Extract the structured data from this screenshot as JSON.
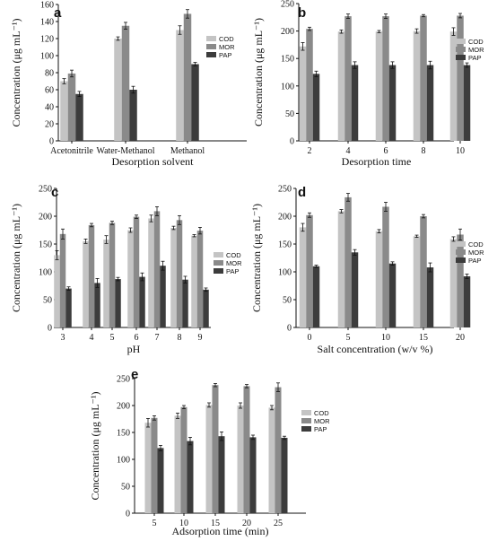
{
  "colors": {
    "COD": "#c4c4c4",
    "MOR": "#8a8a8a",
    "PAP": "#3c3c3c",
    "axis": "#111111"
  },
  "chart_data": [
    {
      "panel": "a",
      "type": "bar",
      "xlabel": "Desorption solvent",
      "ylabel": "Concentration (μg mL⁻¹)",
      "ylim": [
        0,
        160
      ],
      "yticks": [
        0,
        20,
        40,
        60,
        80,
        100,
        120,
        140,
        160
      ],
      "categories": [
        "Acetonitrile",
        "Water-Methanol",
        "Methanol"
      ],
      "legend_position": "top-right",
      "series": [
        {
          "name": "COD",
          "values": [
            70,
            120,
            130
          ],
          "errors": [
            3,
            2,
            5
          ]
        },
        {
          "name": "MOR",
          "values": [
            79,
            135,
            149
          ],
          "errors": [
            4,
            4,
            5
          ]
        },
        {
          "name": "PAP",
          "values": [
            55,
            60,
            90
          ],
          "errors": [
            3,
            4,
            2
          ]
        }
      ]
    },
    {
      "panel": "b",
      "type": "bar",
      "xlabel": "Desorption time",
      "ylabel": "Concentration (μg mL⁻¹)",
      "ylim": [
        0,
        250
      ],
      "yticks": [
        0,
        50,
        100,
        150,
        200,
        250
      ],
      "categories": [
        "2",
        "4",
        "6",
        "8",
        "10"
      ],
      "legend_position": "right",
      "series": [
        {
          "name": "COD",
          "values": [
            172,
            199,
            199,
            200,
            199
          ],
          "errors": [
            7,
            3,
            2,
            4,
            7
          ]
        },
        {
          "name": "MOR",
          "values": [
            204,
            227,
            227,
            228,
            228
          ],
          "errors": [
            3,
            4,
            4,
            2,
            4
          ]
        },
        {
          "name": "PAP",
          "values": [
            122,
            138,
            138,
            138,
            138
          ],
          "errors": [
            5,
            6,
            6,
            7,
            4
          ]
        }
      ]
    },
    {
      "panel": "c",
      "type": "bar",
      "xlabel": "pH",
      "ylabel": "Concentration (μg mL⁻¹)",
      "ylim": [
        0,
        250
      ],
      "yticks": [
        0,
        50,
        100,
        150,
        200,
        250
      ],
      "categories": [
        "3",
        "4",
        "5",
        "6",
        "7",
        "8",
        "9"
      ],
      "legend_position": "right",
      "series": [
        {
          "name": "COD",
          "values": [
            130,
            155,
            158,
            175,
            196,
            179,
            165
          ],
          "errors": [
            8,
            4,
            7,
            4,
            6,
            3,
            2
          ]
        },
        {
          "name": "MOR",
          "values": [
            168,
            184,
            188,
            199,
            209,
            193,
            174
          ],
          "errors": [
            9,
            3,
            3,
            3,
            8,
            8,
            6
          ]
        },
        {
          "name": "PAP",
          "values": [
            70,
            80,
            87,
            91,
            111,
            86,
            68
          ],
          "errors": [
            3,
            8,
            3,
            7,
            8,
            6,
            3
          ]
        }
      ]
    },
    {
      "panel": "d",
      "type": "bar",
      "xlabel": "Salt concentration (w/v %)",
      "ylabel": "Concentration (μg mL⁻¹)",
      "ylim": [
        0,
        250
      ],
      "yticks": [
        0,
        50,
        100,
        150,
        200,
        250
      ],
      "categories": [
        "0",
        "5",
        "10",
        "15",
        "20"
      ],
      "legend_position": "right",
      "series": [
        {
          "name": "COD",
          "values": [
            180,
            209,
            173,
            164,
            159
          ],
          "errors": [
            7,
            3,
            3,
            2,
            4
          ]
        },
        {
          "name": "MOR",
          "values": [
            202,
            234,
            217,
            200,
            167
          ],
          "errors": [
            4,
            7,
            8,
            3,
            10
          ]
        },
        {
          "name": "PAP",
          "values": [
            110,
            135,
            115,
            108,
            92
          ],
          "errors": [
            2,
            5,
            3,
            8,
            4
          ]
        }
      ]
    },
    {
      "panel": "e",
      "type": "bar",
      "xlabel": "Adsorption time (min)",
      "ylabel": "Concentration (μg mL⁻¹)",
      "ylim": [
        0,
        250
      ],
      "yticks": [
        0,
        50,
        100,
        150,
        200,
        250
      ],
      "categories": [
        "5",
        "10",
        "15",
        "20",
        "25"
      ],
      "legend_position": "right",
      "series": [
        {
          "name": "COD",
          "values": [
            168,
            181,
            201,
            200,
            196
          ],
          "errors": [
            8,
            5,
            4,
            5,
            4
          ]
        },
        {
          "name": "MOR",
          "values": [
            177,
            197,
            238,
            236,
            234
          ],
          "errors": [
            4,
            3,
            3,
            3,
            8
          ]
        },
        {
          "name": "PAP",
          "values": [
            121,
            134,
            143,
            141,
            140
          ],
          "errors": [
            5,
            7,
            8,
            4,
            3
          ]
        }
      ]
    }
  ]
}
